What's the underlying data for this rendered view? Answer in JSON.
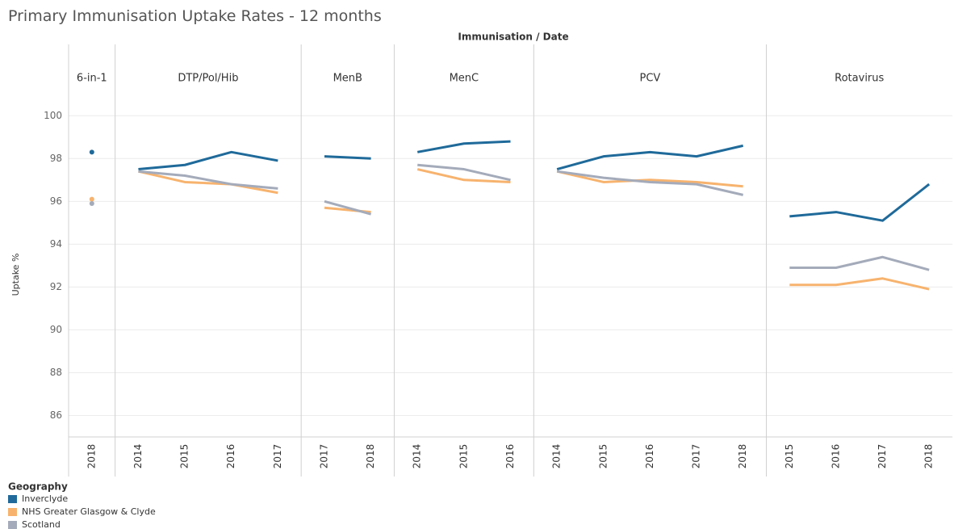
{
  "chart_data": {
    "type": "line",
    "title": "Primary Immunisation Uptake Rates - 12 months",
    "header": "Immunisation / Date",
    "y_label": "Uptake %",
    "ylim": [
      85,
      100.5
    ],
    "yticks": [
      86,
      88,
      90,
      92,
      94,
      96,
      98,
      100
    ],
    "grid": true,
    "legend_title": "Geography",
    "series": [
      {
        "name": "Inverclyde",
        "color": "#1f6a9a"
      },
      {
        "name": "NHS Greater Glasgow & Clyde",
        "color": "#f7b36e"
      },
      {
        "name": "Scotland",
        "color": "#a4abba"
      }
    ],
    "panels": [
      {
        "name": "6-in-1",
        "categories": [
          "2018"
        ],
        "values": [
          [
            98.3
          ],
          [
            96.1
          ],
          [
            95.9
          ]
        ]
      },
      {
        "name": "DTP/Pol/Hib",
        "categories": [
          "2014",
          "2015",
          "2016",
          "2017"
        ],
        "values": [
          [
            97.5,
            97.7,
            98.3,
            97.9
          ],
          [
            97.4,
            96.9,
            96.8,
            96.4
          ],
          [
            97.4,
            97.2,
            96.8,
            96.6
          ]
        ]
      },
      {
        "name": "MenB",
        "categories": [
          "2017",
          "2018"
        ],
        "values": [
          [
            98.1,
            98.0
          ],
          [
            95.7,
            95.5
          ],
          [
            96.0,
            95.4
          ]
        ]
      },
      {
        "name": "MenC",
        "categories": [
          "2014",
          "2015",
          "2016"
        ],
        "values": [
          [
            98.3,
            98.7,
            98.8
          ],
          [
            97.5,
            97.0,
            96.9
          ],
          [
            97.7,
            97.5,
            97.0
          ]
        ]
      },
      {
        "name": "PCV",
        "categories": [
          "2014",
          "2015",
          "2016",
          "2017",
          "2018"
        ],
        "values": [
          [
            97.5,
            98.1,
            98.3,
            98.1,
            98.6
          ],
          [
            97.4,
            96.9,
            97.0,
            96.9,
            96.7
          ],
          [
            97.4,
            97.1,
            96.9,
            96.8,
            96.3
          ]
        ]
      },
      {
        "name": "Rotavirus",
        "categories": [
          "2015",
          "2016",
          "2017",
          "2018"
        ],
        "values": [
          [
            95.3,
            95.5,
            95.1,
            96.8
          ],
          [
            92.1,
            92.1,
            92.4,
            91.9
          ],
          [
            92.9,
            92.9,
            93.4,
            92.8
          ]
        ]
      }
    ]
  }
}
